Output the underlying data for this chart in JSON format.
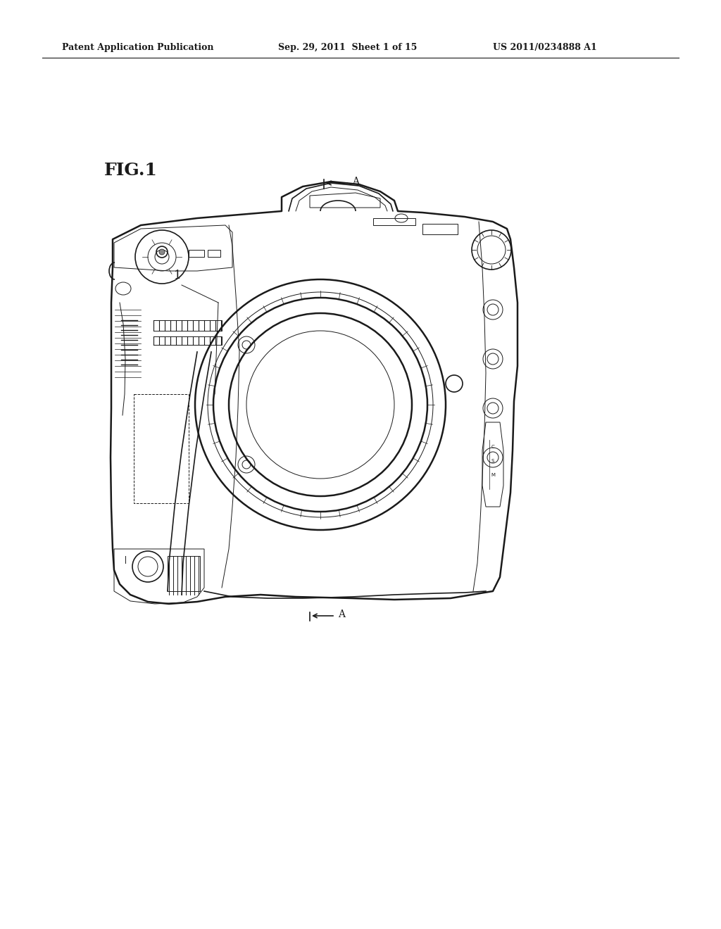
{
  "bg_color": "#ffffff",
  "line_color": "#1a1a1a",
  "header_left": "Patent Application Publication",
  "header_mid": "Sep. 29, 2011  Sheet 1 of 15",
  "header_right": "US 2011/0234888 A1",
  "fig_label": "FIG.1",
  "label_1": "1",
  "label_A_top": "A",
  "label_A_bot": "A",
  "lw": 1.2,
  "lw_thick": 1.8,
  "lw_thin": 0.7
}
